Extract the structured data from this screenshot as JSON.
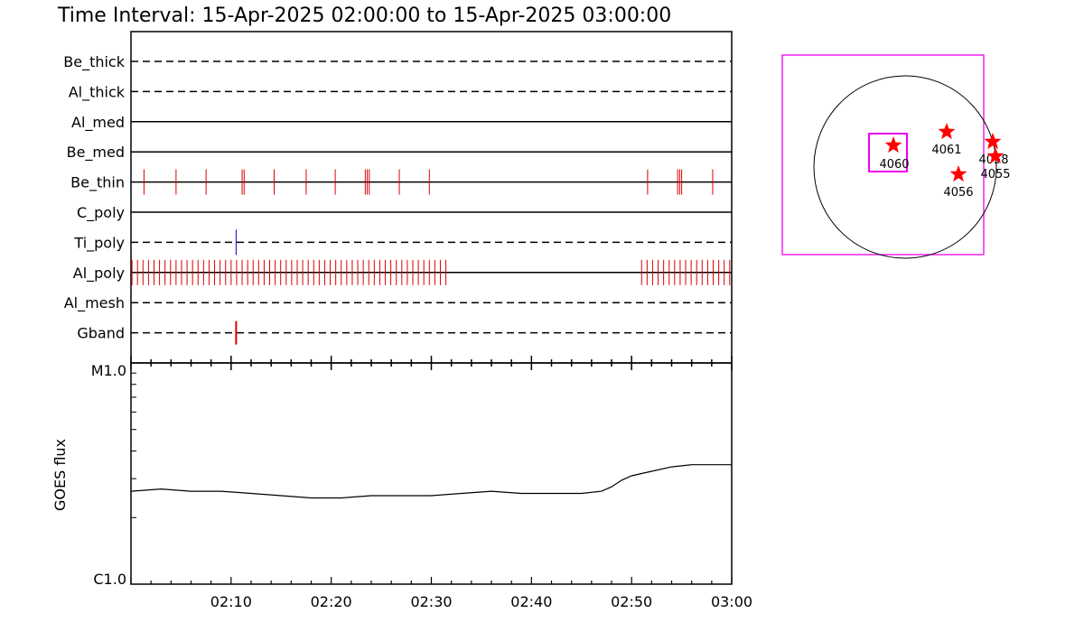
{
  "title": "Time Interval: 15-Apr-2025 02:00:00 to 15-Apr-2025 03:00:00",
  "colors": {
    "event_red": "#dd0000",
    "event_blue": "#0000cc",
    "magenta": "#ee00ee",
    "star_red": "#ff0000",
    "axis": "#000000"
  },
  "chart_data": [
    {
      "type": "event-timeline",
      "x_range": [
        "02:00",
        "03:00"
      ],
      "x_ticks": [
        "02:10",
        "02:20",
        "02:30",
        "02:40",
        "02:50",
        "03:00"
      ],
      "channels": [
        {
          "name": "Be_thick",
          "style": "dashed",
          "events": []
        },
        {
          "name": "Al_thick",
          "style": "dashed",
          "events": []
        },
        {
          "name": "Al_med",
          "style": "solid",
          "events": []
        },
        {
          "name": "Be_med",
          "style": "solid",
          "events": []
        },
        {
          "name": "Be_thin",
          "style": "solid",
          "color": "red",
          "events": [
            1.3,
            4.5,
            7.5,
            11.1,
            11.3,
            14.3,
            17.5,
            20.4,
            23.4,
            23.6,
            23.8,
            26.8,
            29.8,
            51.6,
            54.6,
            54.8,
            55.0,
            58.1
          ]
        },
        {
          "name": "C_poly",
          "style": "solid",
          "events": []
        },
        {
          "name": "Ti_poly",
          "style": "dashed",
          "color": "blue",
          "events": [
            10.5
          ]
        },
        {
          "name": "Al_poly",
          "style": "solid",
          "color": "red",
          "event_ranges": [
            [
              0.1,
              31.5
            ],
            [
              51.0,
              59.9
            ]
          ],
          "event_spacing": 0.55
        },
        {
          "name": "Al_mesh",
          "style": "dashed",
          "events": []
        },
        {
          "name": "Gband",
          "style": "dashed",
          "color": "red",
          "events": [
            10.5
          ]
        }
      ]
    },
    {
      "type": "line",
      "ylabel": "GOES flux",
      "y_scale": "log",
      "ylim": [
        "C1.0",
        "M1.0"
      ],
      "y_ticks": [
        "M1.0",
        "C1.0"
      ],
      "x_range": [
        "02:00",
        "03:00"
      ],
      "x_ticks": [
        "02:10",
        "02:20",
        "02:30",
        "02:40",
        "02:50",
        "03:00"
      ],
      "series": [
        {
          "x_minutes": [
            0,
            3,
            6,
            9,
            12,
            15,
            18,
            21,
            24,
            27,
            30,
            33,
            36,
            39,
            42,
            45,
            47,
            48,
            49,
            50,
            52,
            54,
            56,
            58,
            60
          ],
          "log_value": [
            0.42,
            0.43,
            0.42,
            0.42,
            0.41,
            0.4,
            0.39,
            0.39,
            0.4,
            0.4,
            0.4,
            0.41,
            0.42,
            0.41,
            0.41,
            0.41,
            0.42,
            0.44,
            0.47,
            0.49,
            0.51,
            0.53,
            0.54,
            0.54,
            0.54
          ]
        }
      ]
    }
  ],
  "map": {
    "active_regions": [
      {
        "id": "4060",
        "boxed": true
      },
      {
        "id": "4061"
      },
      {
        "id": "4058"
      },
      {
        "id": "4055"
      },
      {
        "id": "4056"
      }
    ]
  }
}
